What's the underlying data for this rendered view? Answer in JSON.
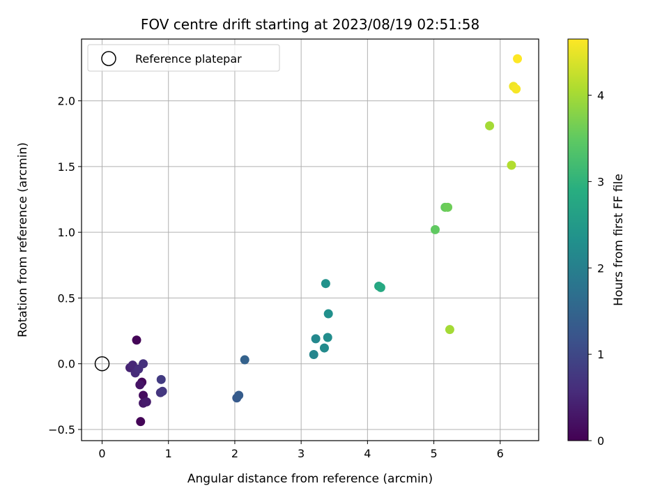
{
  "chart_data": {
    "type": "scatter",
    "title": "FOV centre drift starting at 2023/08/19 02:51:58",
    "xlabel": "Angular distance from reference (arcmin)",
    "ylabel": "Rotation from reference (arcmin)",
    "xlim": [
      -0.31,
      6.58
    ],
    "ylim": [
      -0.585,
      2.47
    ],
    "xticks": [
      0,
      1,
      2,
      3,
      4,
      5,
      6
    ],
    "xtick_labels": [
      "0",
      "1",
      "2",
      "3",
      "4",
      "5",
      "6"
    ],
    "yticks": [
      -0.5,
      0.0,
      0.5,
      1.0,
      1.5,
      2.0
    ],
    "ytick_labels": [
      "−0.5",
      "0.0",
      "0.5",
      "1.0",
      "1.5",
      "2.0"
    ],
    "grid": true,
    "legend": {
      "placement": "top-left",
      "entries": [
        "Reference platepar"
      ]
    },
    "reference_point": {
      "x": 0,
      "y": 0
    },
    "colorbar": {
      "label": "Hours from first FF file",
      "range": [
        0,
        4.65
      ],
      "ticks": [
        0,
        1,
        2,
        3,
        4
      ],
      "tick_labels": [
        "0",
        "1",
        "2",
        "3",
        "4"
      ],
      "colormap": "viridis"
    },
    "points": [
      {
        "x": 0.52,
        "y": 0.18,
        "c": 0.05
      },
      {
        "x": 0.58,
        "y": -0.44,
        "c": 0.05
      },
      {
        "x": 0.6,
        "y": -0.14,
        "c": 0.1
      },
      {
        "x": 0.62,
        "y": -0.24,
        "c": 0.15
      },
      {
        "x": 0.57,
        "y": -0.16,
        "c": 0.25
      },
      {
        "x": 0.62,
        "y": -0.3,
        "c": 0.3
      },
      {
        "x": 0.67,
        "y": -0.29,
        "c": 0.35
      },
      {
        "x": 0.42,
        "y": -0.03,
        "c": 0.45
      },
      {
        "x": 0.46,
        "y": -0.01,
        "c": 0.5
      },
      {
        "x": 0.5,
        "y": -0.07,
        "c": 0.55
      },
      {
        "x": 0.55,
        "y": -0.04,
        "c": 0.6
      },
      {
        "x": 0.62,
        "y": 0.0,
        "c": 0.65
      },
      {
        "x": 0.88,
        "y": -0.22,
        "c": 0.7
      },
      {
        "x": 0.91,
        "y": -0.21,
        "c": 0.75
      },
      {
        "x": 0.89,
        "y": -0.12,
        "c": 0.8
      },
      {
        "x": 2.03,
        "y": -0.26,
        "c": 1.3
      },
      {
        "x": 2.06,
        "y": -0.24,
        "c": 1.35
      },
      {
        "x": 2.15,
        "y": 0.03,
        "c": 1.45
      },
      {
        "x": 3.19,
        "y": 0.07,
        "c": 2.1
      },
      {
        "x": 3.22,
        "y": 0.19,
        "c": 2.15
      },
      {
        "x": 3.35,
        "y": 0.12,
        "c": 2.2
      },
      {
        "x": 3.4,
        "y": 0.2,
        "c": 2.25
      },
      {
        "x": 3.41,
        "y": 0.38,
        "c": 2.3
      },
      {
        "x": 3.37,
        "y": 0.61,
        "c": 2.35
      },
      {
        "x": 4.17,
        "y": 0.59,
        "c": 2.75
      },
      {
        "x": 4.2,
        "y": 0.58,
        "c": 2.8
      },
      {
        "x": 5.02,
        "y": 1.02,
        "c": 3.5
      },
      {
        "x": 5.17,
        "y": 1.19,
        "c": 3.55
      },
      {
        "x": 5.21,
        "y": 1.19,
        "c": 3.6
      },
      {
        "x": 5.24,
        "y": 0.26,
        "c": 4.0
      },
      {
        "x": 5.84,
        "y": 1.81,
        "c": 4.0
      },
      {
        "x": 6.17,
        "y": 1.51,
        "c": 4.1
      },
      {
        "x": 6.2,
        "y": 2.11,
        "c": 4.55
      },
      {
        "x": 6.24,
        "y": 2.09,
        "c": 4.6
      },
      {
        "x": 6.26,
        "y": 2.32,
        "c": 4.65
      }
    ]
  }
}
